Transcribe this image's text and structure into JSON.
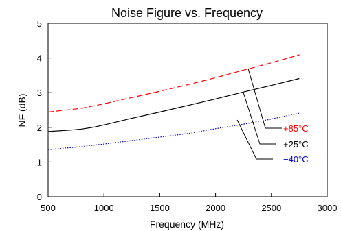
{
  "chart_data": {
    "type": "line",
    "title": "Noise Figure vs. Frequency",
    "xlabel": "Frequency (MHz)",
    "ylabel": "NF (dB)",
    "xlim": [
      500,
      3000
    ],
    "ylim": [
      0,
      5
    ],
    "grid": false,
    "legend": "callouts",
    "xticks": [
      500,
      1000,
      1500,
      2000,
      2500,
      3000
    ],
    "yticks": [
      0,
      1,
      2,
      3,
      4,
      5
    ],
    "series": [
      {
        "name": "+85°C",
        "color": "#ff0000",
        "dash": "dashed",
        "x": [
          500,
          800,
          1000,
          1250,
          1500,
          1750,
          2000,
          2250,
          2500,
          2750
        ],
        "y": [
          2.44,
          2.55,
          2.68,
          2.86,
          3.04,
          3.23,
          3.43,
          3.65,
          3.86,
          4.09
        ]
      },
      {
        "name": "+25°C",
        "color": "#000000",
        "dash": "solid",
        "x": [
          500,
          700,
          800,
          900,
          1000,
          1250,
          1500,
          1750,
          2000,
          2250,
          2500,
          2750
        ],
        "y": [
          1.88,
          1.92,
          1.95,
          2.0,
          2.07,
          2.26,
          2.44,
          2.63,
          2.82,
          3.02,
          3.21,
          3.41
        ]
      },
      {
        "name": "−40°C",
        "color": "#0000cc",
        "dash": "dotted",
        "x": [
          500,
          750,
          1000,
          1250,
          1500,
          1750,
          2000,
          2250,
          2500,
          2750
        ],
        "y": [
          1.36,
          1.43,
          1.52,
          1.62,
          1.72,
          1.82,
          1.96,
          2.09,
          2.24,
          2.41
        ]
      }
    ]
  }
}
